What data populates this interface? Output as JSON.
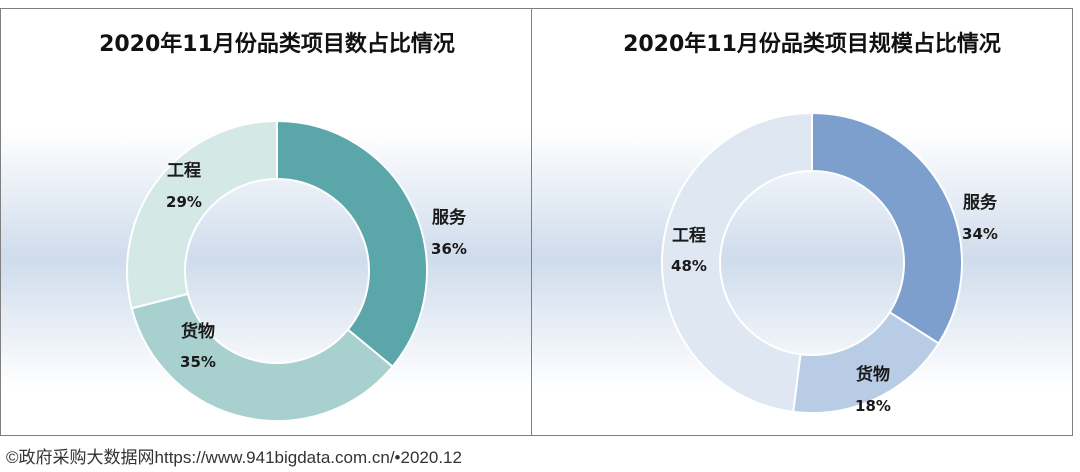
{
  "footer": "©政府采购大数据网https://www.941bigdata.com.cn/•2020.12",
  "chart_data": [
    {
      "type": "pie",
      "title": "2020年11月份品类项目数占比情况",
      "categories": [
        "服务",
        "货物",
        "工程"
      ],
      "values": [
        36,
        35,
        29
      ],
      "labels": [
        "36%",
        "35%",
        "29%"
      ],
      "colors": [
        "#5aa6a9",
        "#a8d0cf",
        "#d4e8e6"
      ]
    },
    {
      "type": "pie",
      "title": "2020年11月份品类项目规模占比情况",
      "categories": [
        "服务",
        "货物",
        "工程"
      ],
      "values": [
        34,
        18,
        48
      ],
      "labels": [
        "34%",
        "18%",
        "48%"
      ],
      "colors": [
        "#7d9fce",
        "#b8cce6",
        "#dfe7f2"
      ]
    }
  ]
}
